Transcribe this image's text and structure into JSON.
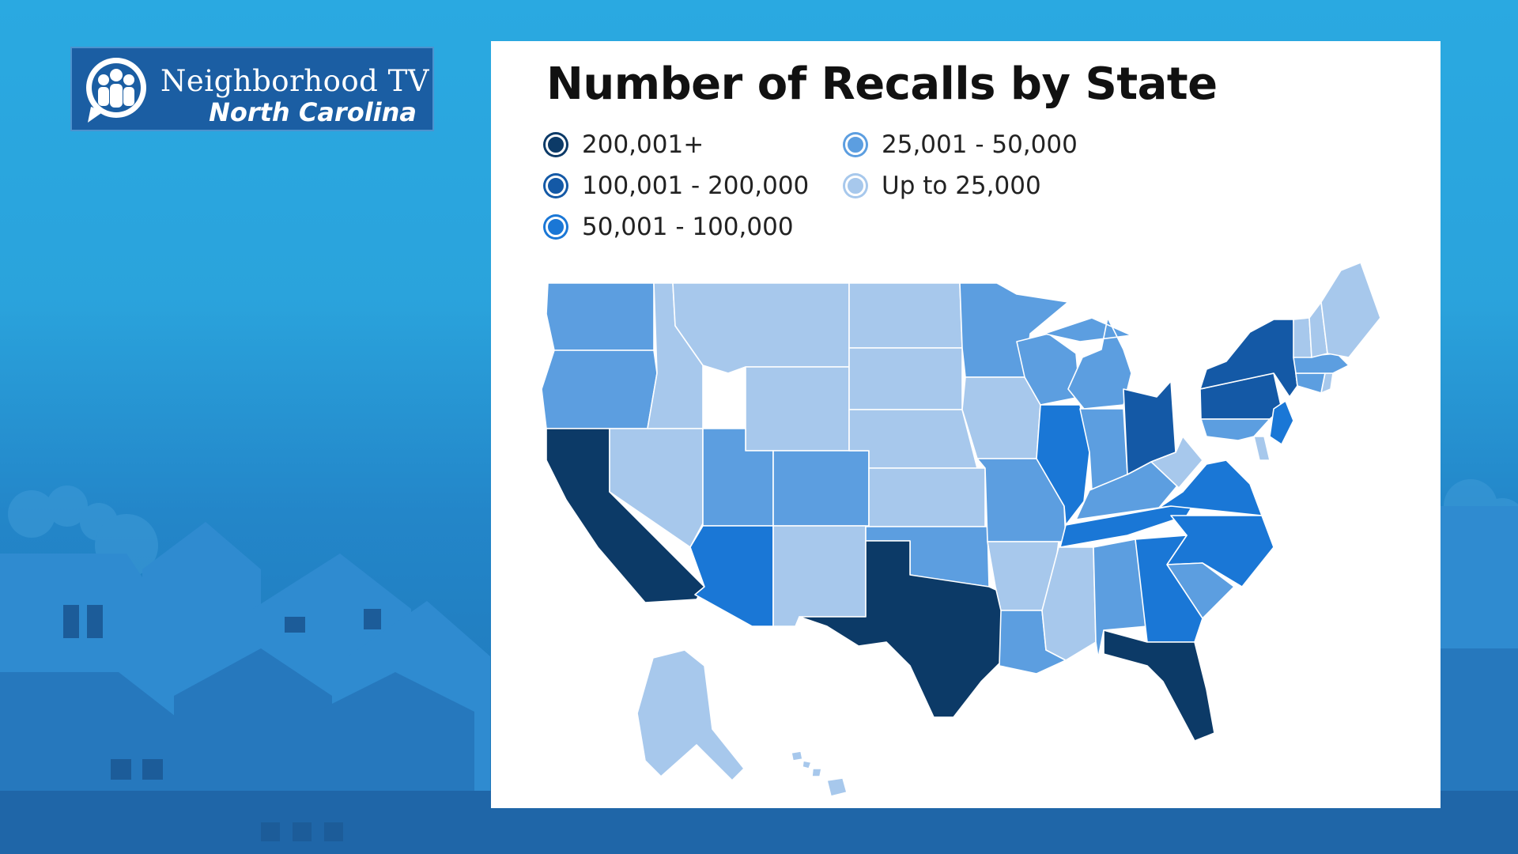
{
  "logo": {
    "line1": "Neighborhood TV",
    "line2": "North Carolina",
    "icon": "people-speech-bubble-icon"
  },
  "chart": {
    "title": "Number of Recalls by State"
  },
  "legend": [
    {
      "key": "c5",
      "label": "200,001+",
      "color": "#0c3a67"
    },
    {
      "key": "c4",
      "label": "100,001 - 200,000",
      "color": "#1459a6"
    },
    {
      "key": "c3",
      "label": "50,001 - 100,000",
      "color": "#1a77d6"
    },
    {
      "key": "c2",
      "label": "25,001 - 50,000",
      "color": "#5c9ee0"
    },
    {
      "key": "c1",
      "label": "Up to 25,000",
      "color": "#a7c8ec"
    }
  ],
  "chart_data": {
    "type": "choropleth",
    "title": "Number of Recalls by State",
    "classes": [
      "200,001+",
      "100,001 - 200,000",
      "50,001 - 100,000",
      "25,001 - 50,000",
      "Up to 25,000"
    ],
    "states": {
      "WA": "c2",
      "OR": "c2",
      "CA": "c5",
      "ID": "c1",
      "NV": "c1",
      "MT": "c1",
      "WY": "c1",
      "UT": "c2",
      "AZ": "c3",
      "CO": "c2",
      "NM": "c1",
      "ND": "c1",
      "SD": "c1",
      "NE": "c1",
      "KS": "c1",
      "OK": "c2",
      "TX": "c5",
      "MN": "c2",
      "IA": "c1",
      "MO": "c2",
      "AR": "c1",
      "LA": "c2",
      "WI": "c2",
      "IL": "c3",
      "MI": "c2",
      "IN": "c2",
      "KY": "c2",
      "TN": "c3",
      "MS": "c1",
      "AL": "c2",
      "OH": "c4",
      "WV": "c1",
      "VA": "c3",
      "NC": "c3",
      "SC": "c2",
      "GA": "c3",
      "FL": "c5",
      "PA": "c4",
      "NY": "c4",
      "NJ": "c3",
      "DE": "c1",
      "MD": "c2",
      "CT": "c2",
      "RI": "c1",
      "MA": "c2",
      "VT": "c1",
      "NH": "c1",
      "ME": "c1",
      "AK": "c1",
      "HI": "c1"
    }
  }
}
